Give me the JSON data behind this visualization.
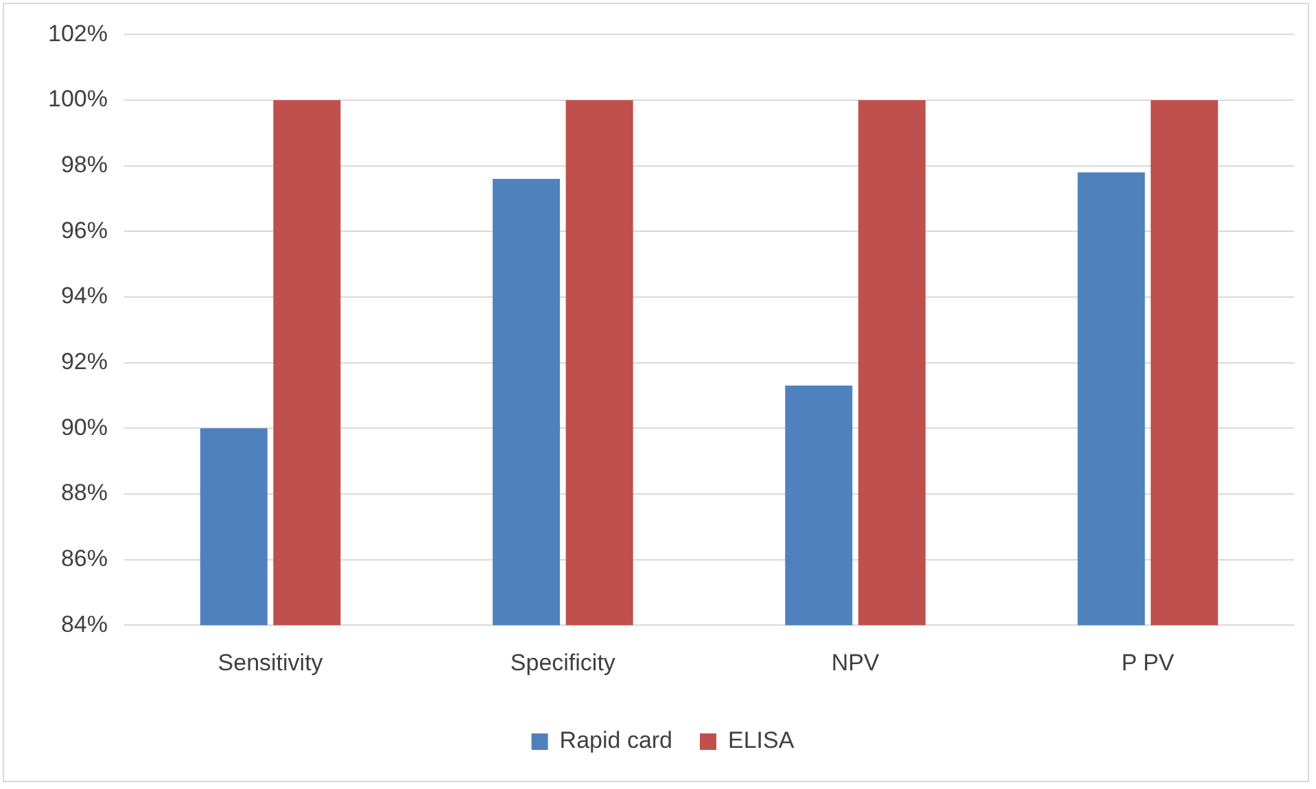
{
  "chart_data": {
    "type": "bar",
    "categories": [
      "Sensitivity",
      "Specificity",
      "NPV",
      "P PV"
    ],
    "series": [
      {
        "name": "Rapid card",
        "color": "#4f81bd",
        "values": [
          90,
          97.6,
          91.3,
          97.8
        ]
      },
      {
        "name": "ELISA",
        "color": "#c0504d",
        "values": [
          100,
          100,
          100,
          100
        ]
      }
    ],
    "ylim": [
      84,
      102
    ],
    "yticks": [
      {
        "value": 84,
        "label": "84%"
      },
      {
        "value": 86,
        "label": "86%"
      },
      {
        "value": 88,
        "label": "88%"
      },
      {
        "value": 90,
        "label": "90%"
      },
      {
        "value": 92,
        "label": "92%"
      },
      {
        "value": 94,
        "label": "94%"
      },
      {
        "value": 96,
        "label": "96%"
      },
      {
        "value": 98,
        "label": "98%"
      },
      {
        "value": 100,
        "label": "100%"
      },
      {
        "value": 102,
        "label": "102%"
      }
    ],
    "grid": "y",
    "legend": "bottom"
  }
}
